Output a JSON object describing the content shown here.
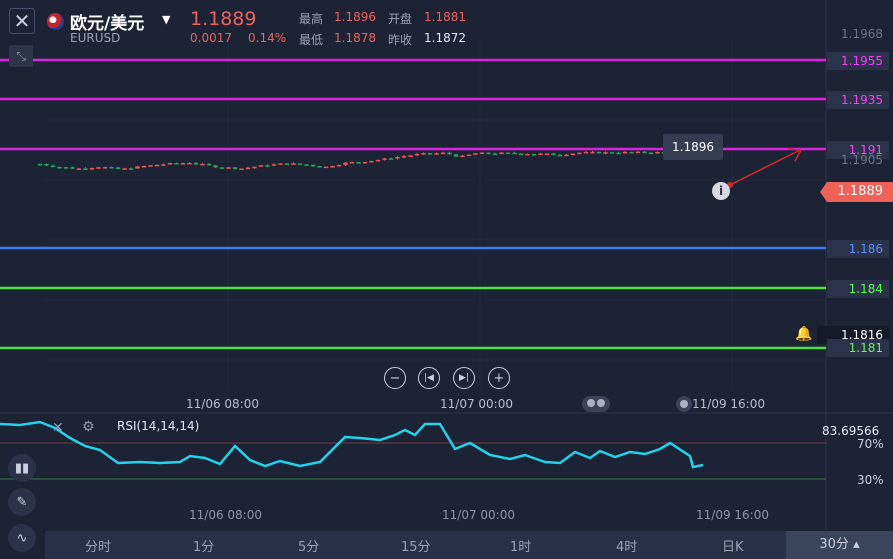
{
  "header": {
    "pair_name": "欧元/美元",
    "pair_code": "EURUSD",
    "last_price": "1.1889",
    "change": "0.0017",
    "change_pct": "0.14%",
    "high_label": "最高",
    "high_value": "1.1896",
    "open_label": "开盘",
    "open_value": "1.1881",
    "low_label": "最低",
    "low_value": "1.1878",
    "prev_close_label": "昨收",
    "prev_close_value": "1.1872"
  },
  "price_axis": {
    "top_tick": "1.1968",
    "tick_1905": "1.1905",
    "tick_1816": "1.1816",
    "current_price": "1.1889",
    "bubble_price": "1.1896"
  },
  "levels": [
    {
      "label": "1.1955",
      "color": "#e020e0"
    },
    {
      "label": "1.1935",
      "color": "#e020e0"
    },
    {
      "label": "1.191",
      "color": "#e020e0"
    },
    {
      "label": "1.186",
      "color": "#3f7cf0"
    },
    {
      "label": "1.184",
      "color": "#4fe03c"
    },
    {
      "label": "1.181",
      "color": "#4fe03c"
    }
  ],
  "time_axis": {
    "t1": "11/06 08:00",
    "t2": "11/07 00:00",
    "t3": "11/09 16:00"
  },
  "rsi": {
    "label": "RSI(14,14,14)",
    "value": "83.69566",
    "level_70": "70%",
    "level_30": "30%"
  },
  "periods": {
    "p1": "分时",
    "p2": "1分",
    "p3": "5分",
    "p4": "15分",
    "p5": "1时",
    "p6": "4时",
    "p7": "日K",
    "active": "30分"
  },
  "colors": {
    "up": "#ef5350",
    "down": "#26a65b",
    "background": "#1b2334",
    "rsi_line": "#22d3ee"
  },
  "chart_data": {
    "type": "candlestick",
    "series": [
      {
        "name": "RSI(14,14,14)",
        "last_value": 83.69566
      }
    ]
  }
}
